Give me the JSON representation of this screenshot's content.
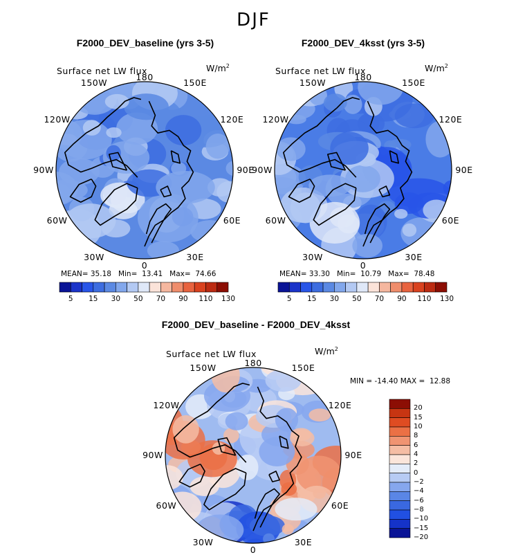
{
  "title": "DJF",
  "variable": "Surface net LW flux",
  "units_base": "W/m",
  "units_exp": "2",
  "colors": {
    "seq": [
      "#0a1496",
      "#1a33c9",
      "#2855e8",
      "#3d6de0",
      "#5b89e3",
      "#82a7ec",
      "#b3c9f3",
      "#dfe8f8",
      "#fbe3d9",
      "#f5b79f",
      "#ef8d6c",
      "#e8633f",
      "#d9421f",
      "#bc2b12",
      "#8c0e04"
    ],
    "div": [
      "#0a1496",
      "#1533c9",
      "#2150e2",
      "#3a68e0",
      "#5a86e6",
      "#86a7ee",
      "#b7cbf4",
      "#e4ecf9",
      "#fbe5da",
      "#f5bda4",
      "#f09472",
      "#eb7045",
      "#df4c22",
      "#c73512",
      "#8c0e04"
    ]
  },
  "lon_labels": [
    "180",
    "150E",
    "120E",
    "90E",
    "60E",
    "30E",
    "0",
    "30W",
    "60W",
    "90W",
    "120W",
    "150W"
  ],
  "panels": [
    {
      "title": "F2000_DEV_baseline (yrs 3-5)",
      "mean_label": "MEAN=",
      "mean": "35.18",
      "min_label": "Min=",
      "min": "13.41",
      "max_label": "Max=",
      "max": "74.66"
    },
    {
      "title": "F2000_DEV_4ksst (yrs 3-5)",
      "mean_label": "MEAN=",
      "mean": "33.30",
      "min_label": "Min=",
      "min": "10.79",
      "max_label": "Max=",
      "max": "78.48"
    },
    {
      "title": "F2000_DEV_baseline - F2000_DEV_4ksst",
      "min_label": "MIN =",
      "min": "-14.40",
      "max_label": "MAX =",
      "max": "12.88"
    }
  ],
  "chart_data": [
    {
      "type": "heatmap",
      "projection": "north polar stereographic",
      "title": "F2000_DEV_baseline (yrs 3-5)",
      "variable": "Surface net LW flux",
      "units": "W/m^2",
      "stats": {
        "mean": 35.18,
        "min": 13.41,
        "max": 74.66
      },
      "colorbar_levels": [
        5,
        10,
        15,
        20,
        30,
        40,
        50,
        60,
        70,
        80,
        90,
        100,
        110,
        120,
        130
      ],
      "colorbar_tick_labels": [
        "5",
        "15",
        "30",
        "50",
        "70",
        "90",
        "110",
        "130"
      ]
    },
    {
      "type": "heatmap",
      "projection": "north polar stereographic",
      "title": "F2000_DEV_4ksst (yrs 3-5)",
      "variable": "Surface net LW flux",
      "units": "W/m^2",
      "stats": {
        "mean": 33.3,
        "min": 10.79,
        "max": 78.48
      },
      "colorbar_levels": [
        5,
        10,
        15,
        20,
        30,
        40,
        50,
        60,
        70,
        80,
        90,
        100,
        110,
        120,
        130
      ],
      "colorbar_tick_labels": [
        "5",
        "15",
        "30",
        "50",
        "70",
        "90",
        "110",
        "130"
      ]
    },
    {
      "type": "heatmap",
      "projection": "north polar stereographic",
      "title": "F2000_DEV_baseline - F2000_DEV_4ksst",
      "variable": "Surface net LW flux",
      "units": "W/m^2",
      "stats": {
        "min": -14.4,
        "max": 12.88
      },
      "colorbar_levels": [
        -20,
        -15,
        -10,
        -8,
        -6,
        -4,
        -2,
        0,
        2,
        4,
        6,
        8,
        10,
        15,
        20
      ],
      "colorbar_tick_labels": [
        "20",
        "15",
        "10",
        "8",
        "6",
        "4",
        "2",
        "0",
        "−2",
        "−4",
        "−6",
        "−8",
        "−10",
        "−15",
        "−20"
      ]
    }
  ]
}
